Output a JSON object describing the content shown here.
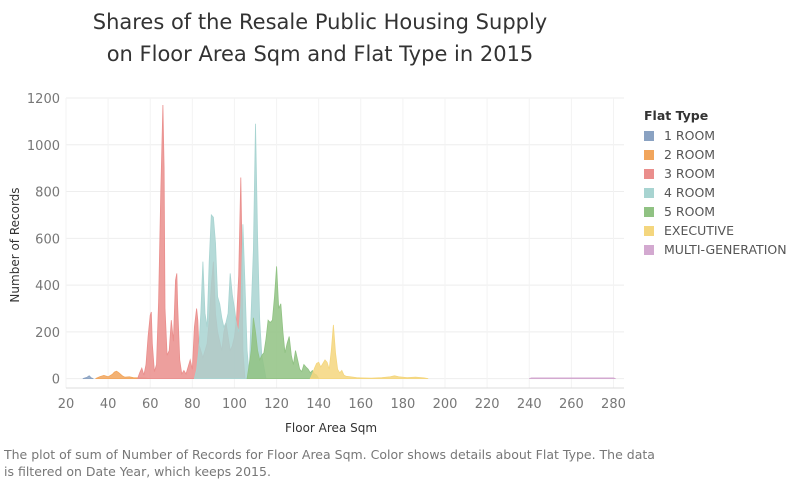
{
  "caption": "The plot of sum of Number of Records for Floor Area Sqm.  Color shows details about Flat Type. The data is filtered on Date Year, which keeps 2015.",
  "chart_data": {
    "type": "area",
    "title_lines": [
      "Shares of the Resale Public Housing Supply",
      "on Floor Area Sqm and Flat Type in 2015"
    ],
    "xlabel": "Floor Area Sqm",
    "ylabel": "Number of Records",
    "xlim": [
      20,
      285
    ],
    "ylim": [
      -40,
      1200
    ],
    "x_ticks": [
      20,
      40,
      60,
      80,
      100,
      120,
      140,
      160,
      180,
      200,
      220,
      240,
      260,
      280
    ],
    "y_ticks": [
      0,
      200,
      400,
      600,
      800,
      1000,
      1200
    ],
    "grid": true,
    "legend": {
      "title": "Flat Type",
      "placement": "right"
    },
    "series": [
      {
        "name": "1 ROOM",
        "color": "#8aa2c2",
        "points": [
          [
            28,
            0
          ],
          [
            30,
            6
          ],
          [
            31,
            12
          ],
          [
            32,
            3
          ],
          [
            33,
            0
          ]
        ]
      },
      {
        "name": "2 ROOM",
        "color": "#f1a55c",
        "points": [
          [
            34,
            0
          ],
          [
            36,
            8
          ],
          [
            38,
            14
          ],
          [
            40,
            8
          ],
          [
            42,
            18
          ],
          [
            43,
            28
          ],
          [
            44,
            32
          ],
          [
            45,
            26
          ],
          [
            46,
            18
          ],
          [
            47,
            10
          ],
          [
            48,
            6
          ],
          [
            50,
            8
          ],
          [
            52,
            4
          ],
          [
            55,
            3
          ],
          [
            58,
            2
          ],
          [
            60,
            0
          ]
        ]
      },
      {
        "name": "3 ROOM",
        "color": "#ea8e8c",
        "points": [
          [
            54,
            0
          ],
          [
            55,
            25
          ],
          [
            56,
            45
          ],
          [
            57,
            15
          ],
          [
            58,
            60
          ],
          [
            59,
            180
          ],
          [
            60,
            270
          ],
          [
            60.5,
            285
          ],
          [
            61,
            150
          ],
          [
            62,
            30
          ],
          [
            63,
            60
          ],
          [
            64,
            330
          ],
          [
            65,
            800
          ],
          [
            66,
            1170
          ],
          [
            66.6,
            900
          ],
          [
            67,
            300
          ],
          [
            68,
            100
          ],
          [
            69,
            120
          ],
          [
            70,
            250
          ],
          [
            71,
            160
          ],
          [
            72,
            420
          ],
          [
            72.6,
            450
          ],
          [
            73,
            320
          ],
          [
            74,
            80
          ],
          [
            75,
            20
          ],
          [
            76,
            35
          ],
          [
            77,
            20
          ],
          [
            78,
            50
          ],
          [
            79,
            80
          ],
          [
            80,
            40
          ],
          [
            81,
            220
          ],
          [
            82,
            300
          ],
          [
            82.6,
            250
          ],
          [
            83,
            150
          ],
          [
            84,
            120
          ],
          [
            85,
            90
          ],
          [
            86,
            120
          ],
          [
            87,
            150
          ],
          [
            88,
            250
          ],
          [
            89,
            400
          ],
          [
            90,
            500
          ],
          [
            91,
            280
          ],
          [
            92,
            200
          ],
          [
            93,
            160
          ],
          [
            94,
            120
          ],
          [
            95,
            200
          ],
          [
            96,
            240
          ],
          [
            97,
            180
          ],
          [
            98,
            120
          ],
          [
            99,
            140
          ],
          [
            100,
            180
          ],
          [
            101,
            260
          ],
          [
            102,
            440
          ],
          [
            103,
            860
          ],
          [
            103.5,
            600
          ],
          [
            104,
            120
          ],
          [
            105,
            0
          ]
        ]
      },
      {
        "name": "4 ROOM",
        "color": "#a8d4d1",
        "points": [
          [
            81,
            0
          ],
          [
            82,
            40
          ],
          [
            83,
            120
          ],
          [
            84,
            280
          ],
          [
            85,
            500
          ],
          [
            86,
            280
          ],
          [
            87,
            220
          ],
          [
            88,
            500
          ],
          [
            89,
            700
          ],
          [
            90,
            690
          ],
          [
            91,
            580
          ],
          [
            92,
            350
          ],
          [
            93,
            320
          ],
          [
            94,
            260
          ],
          [
            95,
            220
          ],
          [
            96,
            240
          ],
          [
            97,
            280
          ],
          [
            98,
            450
          ],
          [
            99,
            360
          ],
          [
            100,
            300
          ],
          [
            101,
            230
          ],
          [
            102,
            200
          ],
          [
            103,
            310
          ],
          [
            104,
            660
          ],
          [
            105,
            400
          ],
          [
            106,
            120
          ],
          [
            107,
            20
          ],
          [
            108,
            300
          ],
          [
            109,
            550
          ],
          [
            110,
            1090
          ],
          [
            111,
            600
          ],
          [
            112,
            250
          ],
          [
            113,
            100
          ],
          [
            114,
            50
          ],
          [
            115,
            0
          ]
        ]
      },
      {
        "name": "5 ROOM",
        "color": "#90c283",
        "points": [
          [
            106,
            0
          ],
          [
            107,
            60
          ],
          [
            108,
            120
          ],
          [
            109,
            260
          ],
          [
            110,
            200
          ],
          [
            111,
            120
          ],
          [
            112,
            80
          ],
          [
            113,
            100
          ],
          [
            114,
            110
          ],
          [
            115,
            170
          ],
          [
            116,
            250
          ],
          [
            117,
            240
          ],
          [
            118,
            250
          ],
          [
            119,
            350
          ],
          [
            120,
            480
          ],
          [
            121,
            300
          ],
          [
            122,
            320
          ],
          [
            123,
            200
          ],
          [
            124,
            110
          ],
          [
            125,
            150
          ],
          [
            126,
            180
          ],
          [
            127,
            100
          ],
          [
            128,
            60
          ],
          [
            129,
            120
          ],
          [
            130,
            80
          ],
          [
            131,
            40
          ],
          [
            132,
            30
          ],
          [
            133,
            60
          ],
          [
            134,
            50
          ],
          [
            135,
            40
          ],
          [
            136,
            25
          ],
          [
            137,
            35
          ],
          [
            138,
            20
          ],
          [
            139,
            15
          ],
          [
            140,
            0
          ]
        ]
      },
      {
        "name": "EXECUTIVE",
        "color": "#f4d67e",
        "points": [
          [
            136,
            0
          ],
          [
            137,
            20
          ],
          [
            138,
            45
          ],
          [
            139,
            65
          ],
          [
            140,
            70
          ],
          [
            141,
            50
          ],
          [
            142,
            65
          ],
          [
            143,
            80
          ],
          [
            144,
            70
          ],
          [
            145,
            40
          ],
          [
            146,
            120
          ],
          [
            147,
            230
          ],
          [
            148,
            110
          ],
          [
            149,
            40
          ],
          [
            150,
            25
          ],
          [
            151,
            35
          ],
          [
            152,
            15
          ],
          [
            153,
            10
          ],
          [
            155,
            8
          ],
          [
            158,
            4
          ],
          [
            160,
            3
          ],
          [
            165,
            2
          ],
          [
            170,
            4
          ],
          [
            174,
            8
          ],
          [
            176,
            12
          ],
          [
            178,
            8
          ],
          [
            182,
            4
          ],
          [
            186,
            6
          ],
          [
            190,
            3
          ],
          [
            192,
            0
          ]
        ]
      },
      {
        "name": "MULTI-GENERATION",
        "color": "#d3a9d0",
        "points": [
          [
            240,
            0
          ],
          [
            241,
            3
          ],
          [
            250,
            3
          ],
          [
            260,
            3
          ],
          [
            270,
            3
          ],
          [
            280,
            3
          ],
          [
            281,
            0
          ]
        ]
      }
    ]
  }
}
